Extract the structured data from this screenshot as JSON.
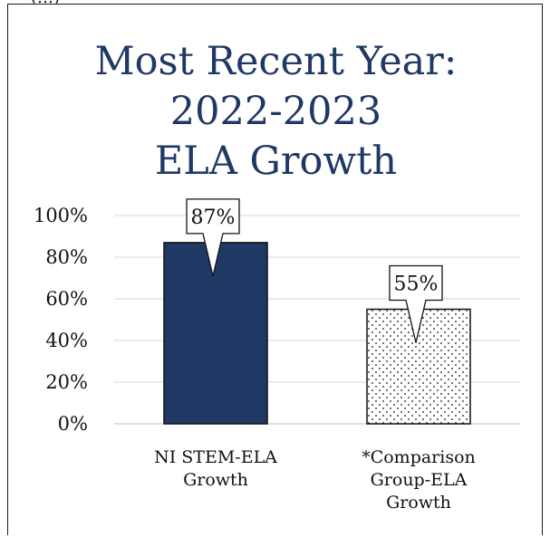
{
  "top_fragment": "(…)",
  "chart_data": {
    "type": "bar",
    "title_lines": [
      "Most Recent Year:",
      "2022-2023",
      "ELA Growth"
    ],
    "categories": [
      [
        "NI STEM-ELA",
        "Growth"
      ],
      [
        "*Comparison",
        "Group-ELA",
        "Growth"
      ]
    ],
    "values": [
      87,
      55
    ],
    "data_labels": [
      "87%",
      "55%"
    ],
    "ylim": [
      0,
      100
    ],
    "y_ticks": [
      0,
      20,
      40,
      60,
      80,
      100
    ],
    "y_tick_labels": [
      "0%",
      "20%",
      "40%",
      "60%",
      "80%",
      "100%"
    ],
    "xlabel": "",
    "ylabel": "",
    "grid": true,
    "bar_fills": [
      "#1f3864",
      "dotted-white"
    ],
    "colors": {
      "title": "#1f3864",
      "bar_primary": "#1f3864",
      "gridline": "#d9d9d9",
      "bar_outline": "#111111"
    }
  }
}
